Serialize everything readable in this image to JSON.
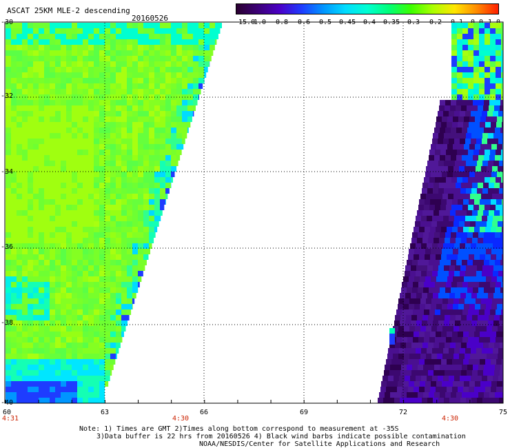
{
  "header": {
    "title": "ASCAT 25KM MLE-2 descending",
    "date": "20160526"
  },
  "colorbar": {
    "tick_labels": [
      "-15.0",
      "-1.0",
      "-0.8",
      "-0.6",
      "-0.5",
      "-0.45",
      "-0.4",
      "-0.35",
      "-0.3",
      "-0.2",
      "-0.1",
      "0.0",
      "1.0"
    ],
    "colors": [
      "#2a0030",
      "#3c0078",
      "#4a00c8",
      "#1e3cff",
      "#0096ff",
      "#00dcff",
      "#00ffd2",
      "#00ff78",
      "#3cff00",
      "#aaff00",
      "#ffe600",
      "#ff8c00",
      "#ff1e00"
    ]
  },
  "map": {
    "lat_labels": [
      "-30",
      "-32",
      "-34",
      "-36",
      "-38",
      "-40"
    ],
    "lon_labels": [
      "60",
      "63",
      "66",
      "69",
      "72",
      "75"
    ],
    "time_labels": [
      "4:31",
      "4:30",
      "4:30"
    ],
    "colors": {
      "swath_left_main": "#7cff2a",
      "swath_left_yellowgreen": "#a8ff10",
      "swath_left_cyan": "#00ffd0",
      "swath_right_purple": "#4a1090",
      "swath_right_blue": "#1e3cff",
      "grid": "#000000"
    }
  },
  "notes": {
    "line1": "Note: 1) Times are GMT 2)Times along bottom correspond to measurement at -35S",
    "line2": "3)Data buffer is 22 hrs from 20160526 4) Black wind barbs indicate possible contamination",
    "line3": "NOAA/NESDIS/Center for Satellite Applications and Research"
  }
}
